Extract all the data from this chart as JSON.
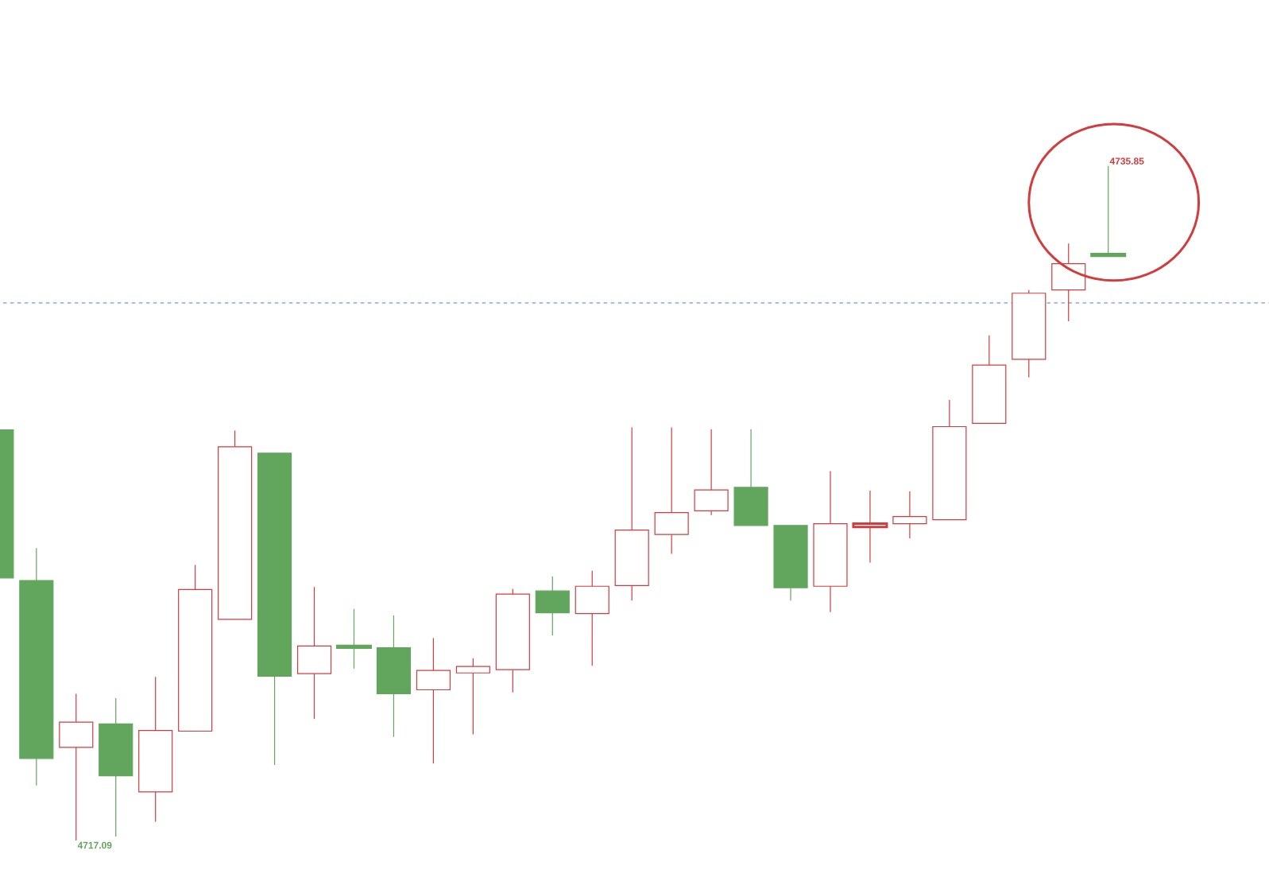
{
  "chart_data": {
    "type": "candlestick",
    "categories": [
      null,
      null,
      null,
      null,
      null,
      null,
      null,
      null,
      null,
      null,
      null,
      null,
      null,
      null,
      null,
      null,
      null,
      null,
      null,
      null,
      null,
      null,
      null,
      null,
      null,
      null,
      null,
      null,
      null
    ],
    "ohlc": [
      [
        4728.51,
        4728.51,
        4724.39,
        4724.39
      ],
      [
        4724.32,
        4725.22,
        4718.62,
        4719.37
      ],
      [
        4719.68,
        4721.17,
        4717.09,
        4720.38
      ],
      [
        4720.33,
        4721.05,
        4717.2,
        4718.89
      ],
      [
        4718.44,
        4721.64,
        4717.61,
        4720.15
      ],
      [
        4720.13,
        4724.75,
        4720.13,
        4724.07
      ],
      [
        4723.24,
        4728.49,
        4723.24,
        4728.04
      ],
      [
        4727.86,
        4727.86,
        4719.19,
        4721.66
      ],
      [
        4721.73,
        4724.14,
        4720.47,
        4722.5
      ],
      [
        4722.5,
        4723.53,
        4721.87,
        4722.45
      ],
      [
        4722.45,
        4723.35,
        4719.97,
        4721.17
      ],
      [
        4721.28,
        4722.72,
        4719.23,
        4721.82
      ],
      [
        4721.75,
        4722.16,
        4720.04,
        4721.93
      ],
      [
        4721.84,
        4724.09,
        4721.21,
        4723.94
      ],
      [
        4724.03,
        4724.43,
        4722.79,
        4723.42
      ],
      [
        4723.4,
        4724.59,
        4721.95,
        4724.16
      ],
      [
        4724.18,
        4728.58,
        4723.76,
        4725.72
      ],
      [
        4725.6,
        4728.58,
        4725.06,
        4726.21
      ],
      [
        4726.26,
        4728.53,
        4726.14,
        4726.84
      ],
      [
        4726.91,
        4728.53,
        4725.85,
        4725.85
      ],
      [
        4725.85,
        4725.85,
        4723.76,
        4724.12
      ],
      [
        4724.16,
        4727.36,
        4723.44,
        4725.9
      ],
      [
        4725.81,
        4726.82,
        4724.82,
        4725.9
      ],
      [
        4725.9,
        4726.8,
        4725.49,
        4726.1
      ],
      [
        4726.01,
        4729.34,
        4726.01,
        4728.6
      ],
      [
        4728.69,
        4731.14,
        4728.69,
        4730.31
      ],
      [
        4730.47,
        4732.4,
        4729.97,
        4732.31
      ],
      [
        4732.4,
        4733.69,
        4731.53,
        4733.13
      ],
      [
        4733.4,
        4735.85,
        4733.35,
        4733.35
      ]
    ],
    "colors": [
      "#62a55c",
      "#62a55c",
      "#d23c3c",
      "#62a55c",
      "#d23c3c",
      "#d23c3c",
      "#d23c3c",
      "#62a55c",
      "#d23c3c",
      "#62a55c",
      "#62a55c",
      "#d23c3c",
      "#d23c3c",
      "#d23c3c",
      "#62a55c",
      "#d23c3c",
      "#d23c3c",
      "#d23c3c",
      "#d23c3c",
      "#62a55c",
      "#62a55c",
      "#d23c3c",
      "#d23c3c",
      "#d23c3c",
      "#d23c3c",
      "#d23c3c",
      "#d23c3c",
      "#d23c3c",
      "#62a55c"
    ],
    "ref_lines": [
      {
        "axis": "y",
        "value": 4732.04,
        "color": "#3b6fc4",
        "line_style": "dashed"
      }
    ],
    "annotations": [
      "4735.85",
      "4717.09"
    ]
  }
}
